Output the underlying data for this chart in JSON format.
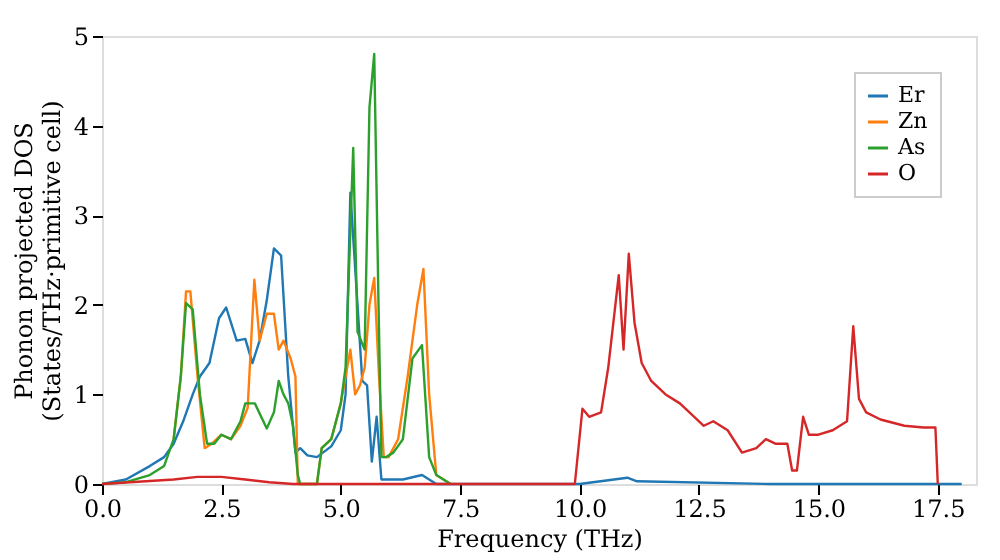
{
  "chart_data": {
    "type": "line",
    "xlabel": "Frequency (THz)",
    "ylabel": "Phonon projected DOS\n(States/THz·primitive cell)",
    "xlim": [
      0,
      18.3
    ],
    "ylim": [
      0,
      5
    ],
    "xticks": [
      {
        "value": 0,
        "label": "0.0"
      },
      {
        "value": 2.5,
        "label": "2.5"
      },
      {
        "value": 5,
        "label": "5.0"
      },
      {
        "value": 7.5,
        "label": "7.5"
      },
      {
        "value": 10,
        "label": "10.0"
      },
      {
        "value": 12.5,
        "label": "12.5"
      },
      {
        "value": 15,
        "label": "15.0"
      },
      {
        "value": 17.5,
        "label": "17.5"
      }
    ],
    "yticks": [
      0,
      1,
      2,
      3,
      4,
      5
    ],
    "grid": false,
    "legend": "top right",
    "line_style": "solid",
    "marker": "none",
    "series": [
      {
        "name": "Er",
        "color": "#1f77b4",
        "x": [
          0,
          0.5,
          1.0,
          1.3,
          1.5,
          1.7,
          1.9,
          2.05,
          2.25,
          2.45,
          2.6,
          2.82,
          3.0,
          3.15,
          3.3,
          3.45,
          3.6,
          3.75,
          3.9,
          4.05,
          4.15,
          4.3,
          4.5,
          4.8,
          5.0,
          5.1,
          5.2,
          5.35,
          5.45,
          5.55,
          5.65,
          5.75,
          5.85,
          6.05,
          6.3,
          6.7,
          7.0,
          10.0,
          11.0,
          11.2,
          14.0,
          18.0
        ],
        "values": [
          0,
          0.05,
          0.2,
          0.3,
          0.45,
          0.7,
          1.0,
          1.2,
          1.35,
          1.85,
          1.97,
          1.6,
          1.62,
          1.35,
          1.6,
          2.05,
          2.63,
          2.55,
          1.2,
          0.35,
          0.4,
          0.32,
          0.3,
          0.42,
          0.6,
          1.0,
          3.25,
          2.0,
          1.15,
          1.1,
          0.25,
          0.75,
          0.05,
          0.05,
          0.05,
          0.1,
          0,
          0,
          0.07,
          0.03,
          0,
          0
        ]
      },
      {
        "name": "Zn",
        "color": "#ff7f0e",
        "x": [
          1.5,
          1.65,
          1.76,
          1.85,
          2.0,
          2.15,
          2.3,
          2.5,
          2.7,
          2.9,
          3.05,
          3.19,
          3.3,
          3.45,
          3.6,
          3.7,
          3.8,
          3.95,
          4.05,
          4.1,
          4.5,
          4.6,
          4.8,
          5.0,
          5.1,
          5.2,
          5.3,
          5.4,
          5.5,
          5.6,
          5.7,
          5.8,
          5.9,
          6.0,
          6.2,
          6.4,
          6.6,
          6.73,
          6.85,
          7.0,
          7.3
        ],
        "values": [
          0.5,
          1.2,
          2.15,
          2.15,
          1.2,
          0.4,
          0.45,
          0.55,
          0.5,
          0.65,
          0.85,
          2.28,
          1.6,
          1.9,
          1.9,
          1.5,
          1.6,
          1.4,
          1.2,
          0,
          0,
          0.4,
          0.5,
          0.9,
          1.2,
          1.5,
          1.0,
          1.1,
          1.3,
          2.0,
          2.3,
          1.2,
          0.3,
          0.3,
          0.5,
          1.2,
          2.0,
          2.4,
          1.0,
          0.1,
          0
        ]
      },
      {
        "name": "As",
        "color": "#2ca02c",
        "x": [
          0,
          0.5,
          1.0,
          1.3,
          1.5,
          1.65,
          1.76,
          1.9,
          2.05,
          2.2,
          2.35,
          2.5,
          2.7,
          2.9,
          3.0,
          3.2,
          3.45,
          3.6,
          3.7,
          3.8,
          3.9,
          4.0,
          4.1,
          4.15,
          4.5,
          4.6,
          4.8,
          5.0,
          5.1,
          5.26,
          5.35,
          5.5,
          5.6,
          5.7,
          5.79,
          5.85,
          5.95,
          6.1,
          6.3,
          6.5,
          6.7,
          6.85,
          7.0,
          7.3
        ],
        "values": [
          0,
          0.02,
          0.1,
          0.2,
          0.5,
          1.2,
          2.02,
          1.95,
          1.0,
          0.45,
          0.45,
          0.55,
          0.5,
          0.7,
          0.9,
          0.9,
          0.62,
          0.8,
          1.15,
          1.0,
          0.9,
          0.65,
          0.1,
          0,
          0,
          0.4,
          0.5,
          0.9,
          1.3,
          3.75,
          1.7,
          1.5,
          4.2,
          4.8,
          2.0,
          0.3,
          0.3,
          0.35,
          0.5,
          1.4,
          1.55,
          0.3,
          0.1,
          0
        ]
      },
      {
        "name": "O",
        "color": "#d62728",
        "x": [
          0,
          1.5,
          2.0,
          2.5,
          3.0,
          3.5,
          4.0,
          4.5,
          9.9,
          10.06,
          10.2,
          10.45,
          10.6,
          10.82,
          10.92,
          11.03,
          11.15,
          11.3,
          11.5,
          11.8,
          12.1,
          12.4,
          12.6,
          12.8,
          13.1,
          13.4,
          13.7,
          13.9,
          14.1,
          14.35,
          14.45,
          14.55,
          14.68,
          14.8,
          15.0,
          15.3,
          15.6,
          15.73,
          15.85,
          16.0,
          16.3,
          16.8,
          17.2,
          17.45,
          17.5
        ],
        "values": [
          0,
          0.05,
          0.08,
          0.08,
          0.05,
          0.02,
          0,
          0,
          0,
          0.84,
          0.75,
          0.8,
          1.3,
          2.33,
          1.5,
          2.57,
          1.8,
          1.35,
          1.15,
          1.0,
          0.9,
          0.75,
          0.65,
          0.7,
          0.6,
          0.35,
          0.4,
          0.5,
          0.45,
          0.45,
          0.15,
          0.15,
          0.75,
          0.55,
          0.55,
          0.6,
          0.7,
          1.76,
          0.95,
          0.8,
          0.72,
          0.65,
          0.63,
          0.63,
          0
        ]
      }
    ]
  }
}
